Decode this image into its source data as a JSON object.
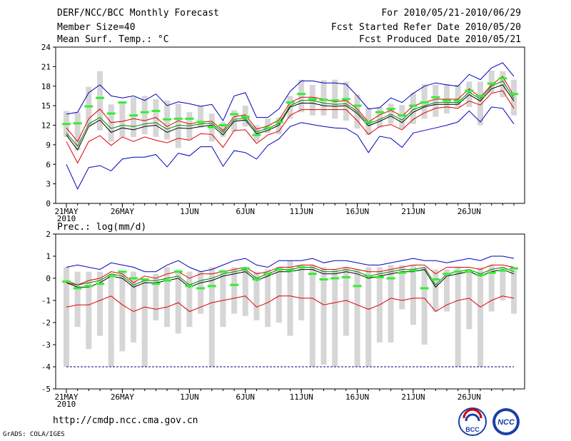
{
  "header": {
    "title": "DERF/NCC/BCC Monthly Forecast",
    "member_size": "Member Size=40",
    "variable1": "Mean Surf. Temp.: °C",
    "period": "For 2010/05/21-2010/06/29",
    "start_date": "Fcst Started Refer Date 2010/05/20",
    "produced_date": "Fcst Produced Date 2010/05/21"
  },
  "footer": {
    "url": "http://cmdp.ncc.cma.gov.cn",
    "credit": "GrADS: COLA/IGES",
    "logo_left_text": "BCC",
    "logo_right_text": "NCC"
  },
  "colors": {
    "range": "#0000c0",
    "pct": "#e00000",
    "median": "#000000",
    "mean": "#008000",
    "obs": "#33ee33",
    "bar": "#d6d6d6"
  },
  "chart_data": [
    {
      "type": "line",
      "title": "Mean Surf. Temp.: °C",
      "ylim": [
        0,
        24
      ],
      "yticks": [
        0,
        3,
        6,
        9,
        12,
        15,
        18,
        21,
        24
      ],
      "xticks": [
        {
          "day": 0,
          "label": "21MAY",
          "sub": "2010"
        },
        {
          "day": 5,
          "label": "26MAY"
        },
        {
          "day": 11,
          "label": "1JUN"
        },
        {
          "day": 16,
          "label": "6JUN"
        },
        {
          "day": 21,
          "label": "11JUN"
        },
        {
          "day": 26,
          "label": "16JUN"
        },
        {
          "day": 31,
          "label": "21JUN"
        },
        {
          "day": 36,
          "label": "26JUN"
        }
      ],
      "max": [
        13.7,
        14.0,
        17.0,
        18.2,
        16.5,
        16.2,
        16.5,
        15.8,
        16.8,
        15.0,
        15.6,
        15.3,
        14.9,
        15.2,
        12.7,
        16.5,
        17.0,
        13.2,
        13.2,
        14.5,
        17.2,
        18.8,
        18.8,
        18.5,
        18.5,
        18.3,
        16.5,
        14.5,
        14.7,
        16.2,
        15.5,
        16.9,
        18.0,
        18.5,
        18.2,
        18.0,
        19.8,
        19.0,
        20.8,
        21.6,
        19.5
      ],
      "upper": [
        11.6,
        9.5,
        13.0,
        14.5,
        12.4,
        12.6,
        13.0,
        12.7,
        13.2,
        11.8,
        12.7,
        12.2,
        12.5,
        12.6,
        11.2,
        13.3,
        13.6,
        11.4,
        11.9,
        12.8,
        15.5,
        16.3,
        16.3,
        16.0,
        15.6,
        15.8,
        14.5,
        12.5,
        13.6,
        14.3,
        13.4,
        15.0,
        15.5,
        16.0,
        16.0,
        16.0,
        17.6,
        16.3,
        18.2,
        19.5,
        16.5
      ],
      "median": [
        10.5,
        8.2,
        11.8,
        12.8,
        10.9,
        11.6,
        11.3,
        11.8,
        12.0,
        10.9,
        11.6,
        11.5,
        11.8,
        12.0,
        10.5,
        12.6,
        12.8,
        10.7,
        11.2,
        12.0,
        14.8,
        15.4,
        15.4,
        15.0,
        14.9,
        15.0,
        13.8,
        11.9,
        12.6,
        13.4,
        12.4,
        14.0,
        14.8,
        15.2,
        15.2,
        15.2,
        16.7,
        15.7,
        17.6,
        18.2,
        15.7
      ],
      "mean": [
        10.8,
        8.8,
        12.2,
        13.2,
        11.5,
        12.0,
        11.8,
        12.2,
        12.4,
        11.4,
        12.0,
        11.9,
        12.2,
        12.3,
        10.9,
        12.9,
        13.1,
        11.0,
        11.5,
        12.3,
        15.0,
        15.8,
        15.8,
        15.4,
        15.2,
        15.3,
        14.1,
        12.2,
        12.9,
        13.7,
        12.8,
        14.4,
        15.0,
        15.5,
        15.5,
        15.5,
        17.1,
        16.0,
        18.0,
        18.8,
        16.1
      ],
      "lower": [
        9.5,
        6.2,
        9.5,
        10.4,
        8.9,
        10.2,
        9.5,
        10.2,
        9.7,
        9.3,
        10.0,
        9.7,
        10.7,
        10.6,
        8.6,
        11.2,
        11.3,
        9.2,
        10.5,
        11.1,
        13.5,
        14.4,
        14.4,
        14.4,
        14.4,
        14.4,
        12.7,
        10.6,
        11.8,
        12.1,
        11.3,
        12.9,
        13.9,
        14.6,
        14.8,
        14.6,
        15.7,
        15.1,
        16.9,
        17.3,
        14.6
      ],
      "min": [
        6.0,
        2.2,
        5.5,
        5.8,
        5.0,
        6.8,
        7.1,
        7.1,
        7.5,
        5.6,
        7.7,
        7.3,
        8.7,
        8.7,
        5.7,
        8.1,
        7.8,
        6.8,
        8.9,
        9.9,
        11.8,
        12.4,
        12.1,
        11.8,
        11.6,
        11.5,
        10.5,
        7.8,
        10.3,
        10.0,
        8.6,
        10.8,
        11.2,
        11.6,
        12.0,
        12.5,
        14.2,
        12.5,
        14.8,
        14.6,
        12.2
      ],
      "bar_top": [
        14.2,
        14.0,
        17.9,
        20.3,
        15.2,
        15.5,
        16.3,
        16.5,
        16.0,
        15.8,
        15.3,
        14.0,
        15.0,
        13.8,
        12.5,
        14.3,
        15.0,
        12.0,
        13.0,
        13.2,
        16.5,
        19.0,
        18.2,
        18.9,
        19.0,
        18.7,
        16.7,
        14.7,
        14.8,
        15.3,
        15.1,
        17.0,
        18.3,
        18.2,
        18.3,
        18.2,
        18.7,
        18.7,
        20.4,
        20.3,
        19.0
      ],
      "bar_bottom": [
        10.2,
        8.2,
        11.8,
        11.2,
        9.5,
        10.2,
        10.2,
        10.6,
        10.2,
        9.8,
        8.5,
        9.7,
        11.6,
        9.5,
        10.2,
        11.0,
        11.8,
        9.5,
        10.8,
        10.6,
        13.0,
        14.0,
        13.5,
        13.5,
        13.0,
        12.7,
        11.5,
        10.5,
        11.6,
        12.2,
        11.5,
        12.2,
        13.0,
        13.3,
        13.8,
        14.8,
        14.8,
        12.0,
        17.0,
        16.3,
        13.5
      ],
      "obs": [
        12.2,
        12.3,
        14.9,
        16.2,
        13.8,
        15.5,
        13.5,
        14.0,
        14.2,
        12.9,
        13.0,
        13.0,
        12.5,
        11.7,
        12.0,
        13.7,
        13.3,
        10.5,
        11.6,
        12.5,
        15.5,
        16.8,
        16.0,
        15.9,
        15.8,
        16.0,
        15.0,
        12.5,
        14.0,
        14.5,
        13.5,
        15.0,
        15.5,
        16.3,
        15.8,
        15.8,
        17.3,
        16.5,
        18.4,
        19.2,
        16.8
      ]
    },
    {
      "type": "line",
      "title": "Prec.: log(mm/d)",
      "ylim": [
        -5,
        2
      ],
      "yticks": [
        -5,
        -4,
        -3,
        -2,
        -1,
        0,
        1,
        2
      ],
      "xticks": [
        {
          "day": 0,
          "label": "21MAY",
          "sub": "2010"
        },
        {
          "day": 5,
          "label": "26MAY"
        },
        {
          "day": 11,
          "label": "1JUN"
        },
        {
          "day": 16,
          "label": "6JUN"
        },
        {
          "day": 21,
          "label": "11JUN"
        },
        {
          "day": 26,
          "label": "16JUN"
        },
        {
          "day": 31,
          "label": "21JUN"
        },
        {
          "day": 36,
          "label": "26JUN"
        }
      ],
      "max": [
        0.5,
        0.6,
        0.5,
        0.4,
        0.7,
        0.6,
        0.5,
        0.3,
        0.3,
        0.6,
        0.8,
        0.5,
        0.3,
        0.4,
        0.6,
        0.8,
        0.9,
        0.6,
        0.5,
        0.8,
        0.8,
        0.8,
        0.9,
        0.7,
        0.8,
        0.8,
        0.7,
        0.6,
        0.6,
        0.7,
        0.8,
        0.9,
        0.8,
        0.8,
        0.7,
        0.8,
        0.9,
        0.8,
        1.0,
        1.0,
        0.9
      ],
      "upper": [
        -0.2,
        -0.3,
        -0.1,
        0.0,
        0.3,
        0.2,
        -0.2,
        0.1,
        0.0,
        0.2,
        0.3,
        0.0,
        0.2,
        0.2,
        0.3,
        0.4,
        0.5,
        0.2,
        0.3,
        0.5,
        0.5,
        0.6,
        0.6,
        0.4,
        0.4,
        0.5,
        0.4,
        0.3,
        0.3,
        0.4,
        0.5,
        0.6,
        0.6,
        0.2,
        0.5,
        0.5,
        0.5,
        0.4,
        0.6,
        0.6,
        0.5
      ],
      "median": [
        -0.2,
        -0.4,
        -0.4,
        -0.2,
        0.1,
        0.0,
        -0.4,
        -0.2,
        -0.2,
        -0.1,
        0.0,
        -0.4,
        -0.2,
        -0.1,
        0.1,
        0.2,
        0.3,
        -0.1,
        0.1,
        0.3,
        0.3,
        0.4,
        0.4,
        0.2,
        0.2,
        0.3,
        0.2,
        0.0,
        0.1,
        0.2,
        0.3,
        0.3,
        0.4,
        -0.4,
        0.1,
        0.2,
        0.3,
        0.1,
        0.3,
        0.4,
        0.2
      ],
      "mean": [
        -0.1,
        -0.3,
        -0.2,
        -0.1,
        0.2,
        0.1,
        -0.3,
        -0.1,
        -0.1,
        0.0,
        0.1,
        -0.3,
        -0.1,
        0.0,
        0.2,
        0.3,
        0.4,
        0.0,
        0.2,
        0.4,
        0.4,
        0.5,
        0.5,
        0.3,
        0.3,
        0.4,
        0.3,
        0.1,
        0.2,
        0.3,
        0.4,
        0.4,
        0.5,
        -0.3,
        0.2,
        0.3,
        0.4,
        0.2,
        0.4,
        0.5,
        0.3
      ],
      "lower": [
        -1.3,
        -1.2,
        -1.2,
        -1.0,
        -0.8,
        -1.2,
        -1.5,
        -1.3,
        -1.4,
        -1.3,
        -1.1,
        -1.5,
        -1.3,
        -1.1,
        -1.0,
        -0.9,
        -0.8,
        -1.3,
        -1.1,
        -0.8,
        -0.8,
        -0.9,
        -0.9,
        -1.2,
        -1.1,
        -1.0,
        -1.2,
        -1.4,
        -1.2,
        -0.9,
        -1.0,
        -0.9,
        -0.9,
        -1.5,
        -1.2,
        -1.0,
        -0.9,
        -1.3,
        -1.0,
        -0.8,
        -0.9
      ],
      "min": [
        -4.0,
        -4.0,
        -4.0,
        -4.0,
        -4.0,
        -4.0,
        -4.0,
        -4.0,
        -4.0,
        -4.0,
        -4.0,
        -4.0,
        -4.0,
        -4.0,
        -4.0,
        -4.0,
        -4.0,
        -4.0,
        -4.0,
        -4.0,
        -4.0,
        -4.0,
        -4.0,
        -4.0,
        -4.0,
        -4.0,
        -4.0,
        -4.0,
        -4.0,
        -4.0,
        -4.0,
        -4.0,
        -4.0,
        -4.0,
        -4.0,
        -4.0,
        -4.0,
        -4.0,
        -4.0,
        -4.0,
        -4.0
      ],
      "bar_top": [
        0.5,
        0.3,
        0.3,
        0.3,
        0.2,
        0.3,
        0.3,
        0.0,
        0.2,
        0.5,
        0.4,
        0.3,
        0.3,
        0.5,
        0.4,
        0.5,
        0.5,
        0.3,
        0.4,
        0.5,
        0.8,
        0.6,
        0.6,
        0.5,
        0.4,
        0.5,
        0.4,
        0.5,
        0.5,
        0.6,
        0.6,
        0.6,
        0.5,
        0.4,
        0.4,
        0.5,
        0.3,
        0.5,
        0.6,
        0.5,
        0.5
      ],
      "bar_bottom": [
        -4.0,
        -2.2,
        -3.2,
        -2.6,
        -4.0,
        -3.3,
        -2.9,
        -4.0,
        -1.9,
        -2.2,
        -2.5,
        -2.2,
        -1.6,
        -4.0,
        -2.2,
        -1.6,
        -1.7,
        -1.9,
        -2.2,
        -2.0,
        -2.6,
        -1.9,
        -4.0,
        -3.9,
        -4.0,
        -2.6,
        -4.0,
        -4.0,
        -2.9,
        -2.9,
        -1.4,
        -2.1,
        -3.0,
        -1.5,
        -1.5,
        -4.0,
        -2.3,
        -4.0,
        -1.5,
        -1.0,
        -1.6
      ],
      "obs": [
        -0.15,
        -0.45,
        -0.35,
        -0.25,
        0.1,
        0.3,
        0.0,
        -0.05,
        -0.25,
        -0.1,
        0.3,
        -0.35,
        -0.45,
        -0.35,
        0.3,
        -0.3,
        0.45,
        -0.05,
        0.2,
        0.4,
        0.35,
        0.5,
        0.2,
        -0.05,
        0.0,
        0.05,
        -0.35,
        0.1,
        0.05,
        0.0,
        0.25,
        0.35,
        -0.45,
        -0.05,
        0.2,
        0.3,
        0.3,
        0.15,
        0.25,
        0.35,
        0.45
      ]
    }
  ]
}
